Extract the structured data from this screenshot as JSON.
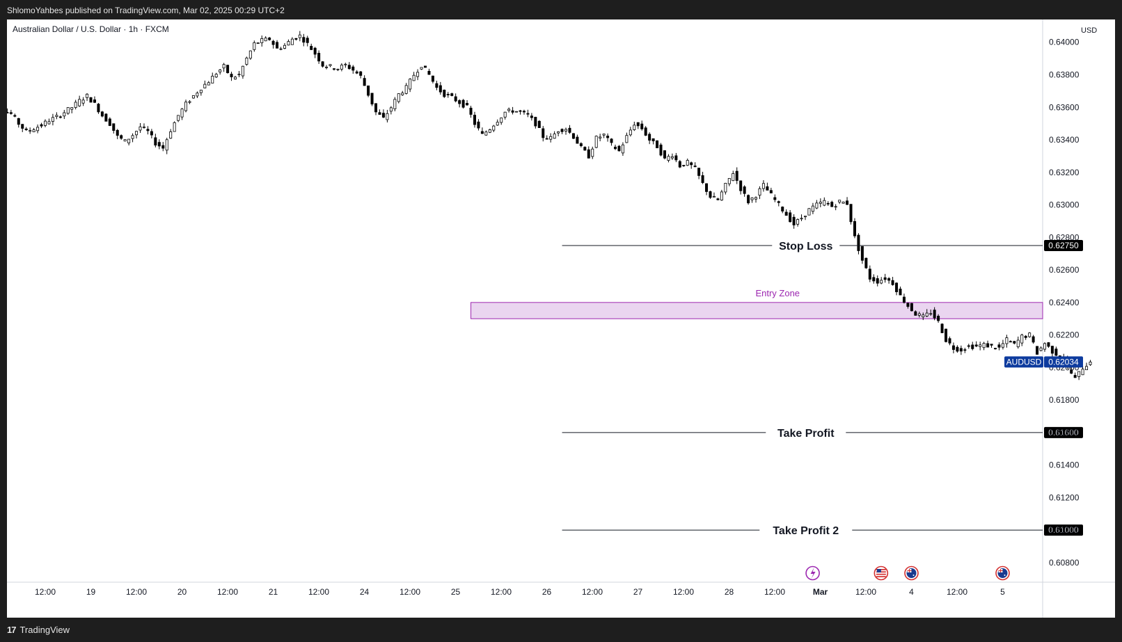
{
  "header": {
    "attribution": "ShlomoYahbes published on TradingView.com, Mar 02, 2025 00:29 UTC+2"
  },
  "footer": {
    "brand_logo": "17",
    "brand_name": "TradingView"
  },
  "chart_data": {
    "type": "candlestick",
    "title": "Australian Dollar / U.S. Dollar · 1h · FXCM",
    "currency": "USD",
    "y_axis": {
      "ylim": [
        0.6068,
        0.6414
      ],
      "ticks": [
        "0.64000",
        "0.63800",
        "0.63600",
        "0.63400",
        "0.63200",
        "0.63000",
        "0.62800",
        "0.62600",
        "0.62400",
        "0.62200",
        "0.62000",
        "0.61800",
        "0.61600",
        "0.61400",
        "0.61200",
        "0.61000",
        "0.60800"
      ]
    },
    "x_axis": {
      "ticks": [
        "12:00",
        "19",
        "12:00",
        "20",
        "12:00",
        "21",
        "12:00",
        "24",
        "12:00",
        "25",
        "12:00",
        "26",
        "12:00",
        "27",
        "12:00",
        "28",
        "12:00",
        "Mar",
        "12:00",
        "4",
        "12:00",
        "5"
      ],
      "bold_ticks": [
        "Mar"
      ]
    },
    "price_path": [
      0.6347,
      0.6352,
      0.6355,
      0.6358,
      0.6356,
      0.635,
      0.6345,
      0.6347,
      0.6349,
      0.6352,
      0.6354,
      0.6357,
      0.636,
      0.6364,
      0.6367,
      0.6362,
      0.6355,
      0.635,
      0.6342,
      0.6339,
      0.6343,
      0.6348,
      0.6345,
      0.6338,
      0.6335,
      0.6346,
      0.6355,
      0.6362,
      0.6367,
      0.6372,
      0.6376,
      0.6381,
      0.6385,
      0.6378,
      0.638,
      0.639,
      0.6399,
      0.6401,
      0.6402,
      0.6396,
      0.6398,
      0.6402,
      0.6404,
      0.6399,
      0.6393,
      0.6386,
      0.6385,
      0.6384,
      0.6386,
      0.6383,
      0.6379,
      0.6368,
      0.6357,
      0.6353,
      0.636,
      0.6368,
      0.6372,
      0.638,
      0.6386,
      0.638,
      0.6372,
      0.6368,
      0.6366,
      0.6363,
      0.636,
      0.635,
      0.6343,
      0.6347,
      0.6352,
      0.6357,
      0.6358,
      0.6357,
      0.6355,
      0.635,
      0.6342,
      0.6341,
      0.6346,
      0.6347,
      0.6342,
      0.6335,
      0.633,
      0.6341,
      0.6343,
      0.6337,
      0.6333,
      0.6342,
      0.635,
      0.6347,
      0.634,
      0.6336,
      0.6328,
      0.6331,
      0.6324,
      0.6326,
      0.6322,
      0.6313,
      0.6305,
      0.6303,
      0.6312,
      0.632,
      0.631,
      0.6302,
      0.6306,
      0.6312,
      0.6306,
      0.63,
      0.6294,
      0.6288,
      0.6292,
      0.6297,
      0.63,
      0.6302,
      0.6299,
      0.6302,
      0.6301,
      0.628,
      0.6266,
      0.6255,
      0.6253,
      0.6255,
      0.6252,
      0.6244,
      0.6238,
      0.6233,
      0.6231,
      0.6234,
      0.6228,
      0.6217,
      0.6212,
      0.6211,
      0.6213,
      0.6213,
      0.6214,
      0.6213,
      0.6212,
      0.6217,
      0.6214,
      0.6219,
      0.622,
      0.6209,
      0.6215,
      0.621,
      0.6207,
      0.62,
      0.6193,
      0.62,
      0.6203
    ],
    "first_candle_label": "12:00",
    "last_price": {
      "symbol": "AUDUSD",
      "price": "0.62034",
      "value": 0.62034,
      "color": "#0d3b9e"
    },
    "levels": [
      {
        "label": "Stop Loss",
        "price": "0.62750",
        "value": 0.6275
      },
      {
        "label": "Take Profit",
        "price": "0.61600",
        "value": 0.616
      },
      {
        "label": "Take Profit 2",
        "price": "0.61000",
        "value": 0.61
      }
    ],
    "entry_zone": {
      "label": "Entry Zone",
      "top": 0.624,
      "bottom": 0.623,
      "color": "#9c27b0",
      "fill": "#ead5f0"
    },
    "event_icons": [
      {
        "name": "flash-event-icon",
        "at_label": "Mar",
        "offset_hours": -4,
        "color": "#9c27b0"
      },
      {
        "name": "us-flag-icon",
        "at_label": "12:00",
        "offset_hours": 8,
        "color": "#d32f2f"
      },
      {
        "name": "au-flag-icon",
        "at_label": "4",
        "offset_hours": 0,
        "color": "#d32f2f"
      },
      {
        "name": "au-flag-icon",
        "at_label": "5",
        "offset_hours": 0,
        "color": "#d32f2f"
      }
    ]
  }
}
